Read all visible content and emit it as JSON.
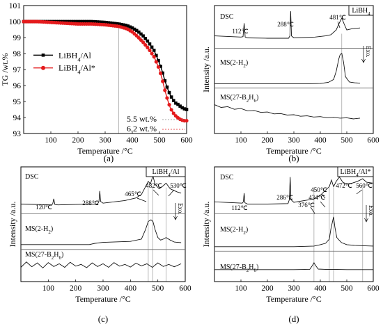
{
  "chart_data": [
    {
      "id": "a",
      "type": "line",
      "panel_label": "(a)",
      "xlabel": "Temperature /°C",
      "ylabel": "TG /wt.%",
      "xlim": [
        0,
        600
      ],
      "ylim": [
        93,
        101
      ],
      "xticks": [
        100,
        200,
        300,
        400,
        500,
        600
      ],
      "yticks": [
        93,
        94,
        95,
        96,
        97,
        98,
        99,
        100,
        101
      ],
      "legend_position": "left-middle",
      "series": [
        {
          "name": "LiBH4/Al",
          "color": "#000000",
          "marker": "square",
          "x": [
            0,
            50,
            100,
            150,
            200,
            250,
            300,
            350,
            380,
            400,
            420,
            440,
            460,
            480,
            500,
            510,
            520,
            530,
            540,
            550,
            560,
            570,
            580,
            590,
            600
          ],
          "y": [
            100.0,
            100.0,
            100.0,
            100.0,
            100.0,
            100.0,
            99.95,
            99.85,
            99.75,
            99.6,
            99.4,
            99.1,
            98.7,
            98.2,
            97.4,
            96.9,
            96.3,
            95.8,
            95.4,
            95.1,
            94.9,
            94.8,
            94.65,
            94.55,
            94.5
          ]
        },
        {
          "name": "LiBH4/Al*",
          "color": "#e41a1c",
          "marker": "circle",
          "x": [
            0,
            50,
            100,
            150,
            200,
            250,
            300,
            350,
            380,
            400,
            420,
            440,
            460,
            480,
            500,
            510,
            520,
            530,
            540,
            550,
            560,
            570,
            580,
            590,
            600
          ],
          "y": [
            100.0,
            100.0,
            99.95,
            99.9,
            99.85,
            99.85,
            99.8,
            99.7,
            99.55,
            99.35,
            99.05,
            98.7,
            98.3,
            97.8,
            97.0,
            96.4,
            95.7,
            95.1,
            94.6,
            94.3,
            94.1,
            93.95,
            93.85,
            93.8,
            93.8
          ]
        }
      ],
      "legend": [
        "LiBH",
        "4",
        "/Al",
        "LiBH",
        "4",
        "/Al*"
      ],
      "annotations": [
        {
          "text": "5.5 wt.%",
          "color": "#000000"
        },
        {
          "text": "6.2 wt.%",
          "color": "#e41a1c"
        }
      ],
      "guide_x": 350
    },
    {
      "id": "b",
      "type": "line",
      "panel_label": "(b)",
      "title": "LiBH4",
      "title_parts": [
        "LiBH",
        "4"
      ],
      "xlabel": "Temperature /°C",
      "ylabel": "Intensity /a.u.",
      "xlim": [
        0,
        600
      ],
      "xticks": [
        100,
        200,
        300,
        400,
        500,
        600
      ],
      "exo_label": "Exo.",
      "guide_x": [
        481
      ],
      "traces": [
        {
          "label": "DSC",
          "peaks_text": [
            "112℃",
            "288℃",
            "481℃"
          ],
          "x": [
            0,
            100,
            108,
            112,
            116,
            125,
            200,
            280,
            285,
            288,
            291,
            300,
            380,
            420,
            440,
            460,
            470,
            481,
            490,
            500,
            520,
            550
          ],
          "y": [
            0.3,
            0.27,
            0.28,
            0.62,
            0.27,
            0.25,
            0.24,
            0.24,
            0.3,
            0.92,
            0.3,
            0.25,
            0.27,
            0.3,
            0.33,
            0.45,
            0.6,
            0.75,
            0.6,
            0.45,
            0.48,
            0.5
          ]
        },
        {
          "label": "MS(2-H2)",
          "label_parts": [
            "MS(2-H",
            "2",
            ")"
          ],
          "x": [
            0,
            250,
            350,
            400,
            430,
            450,
            460,
            470,
            475,
            481,
            488,
            495,
            510,
            530,
            550
          ],
          "y": [
            0.1,
            0.1,
            0.1,
            0.11,
            0.14,
            0.22,
            0.45,
            0.8,
            0.92,
            0.95,
            0.7,
            0.3,
            0.15,
            0.13,
            0.12
          ]
        },
        {
          "label": "MS(27-B2H6)",
          "label_parts": [
            "MS(27-B",
            "2",
            "H",
            "6",
            ")"
          ],
          "x": [
            0,
            25,
            50,
            75,
            100,
            125,
            150,
            175,
            200,
            225,
            250,
            275,
            300,
            325,
            350,
            375,
            400,
            425,
            450,
            475,
            500,
            525,
            550
          ],
          "y": [
            0.65,
            0.58,
            0.6,
            0.53,
            0.55,
            0.49,
            0.5,
            0.45,
            0.46,
            0.41,
            0.42,
            0.38,
            0.39,
            0.35,
            0.36,
            0.33,
            0.34,
            0.31,
            0.32,
            0.3,
            0.31,
            0.28,
            0.3
          ]
        }
      ]
    },
    {
      "id": "c",
      "type": "line",
      "panel_label": "(c)",
      "title": "LiBH4/Al",
      "title_parts": [
        "LiBH",
        "4",
        "/Al"
      ],
      "xlabel": "Temperature /°C",
      "ylabel": "Intensity /a.u.",
      "xlim": [
        0,
        600
      ],
      "xticks": [
        100,
        200,
        300,
        400,
        500,
        600
      ],
      "exo_label": "Exo.",
      "guide_x": [
        465,
        482,
        530
      ],
      "traces": [
        {
          "label": "DSC",
          "peaks_text": [
            "120℃",
            "288℃",
            "465℃",
            "482℃",
            "530℃"
          ],
          "x": [
            0,
            110,
            116,
            120,
            124,
            135,
            200,
            280,
            285,
            288,
            291,
            300,
            380,
            420,
            440,
            455,
            465,
            473,
            482,
            490,
            505,
            520,
            530,
            545,
            570,
            585
          ],
          "y": [
            0.2,
            0.18,
            0.2,
            0.32,
            0.19,
            0.18,
            0.19,
            0.2,
            0.26,
            0.5,
            0.26,
            0.22,
            0.28,
            0.34,
            0.42,
            0.6,
            0.72,
            0.66,
            0.85,
            0.65,
            0.55,
            0.62,
            0.68,
            0.55,
            0.48,
            0.45
          ]
        },
        {
          "label": "MS(2-H2)",
          "label_parts": [
            "MS(2-H",
            "2",
            ")"
          ],
          "x": [
            0,
            250,
            270,
            300,
            400,
            440,
            455,
            465,
            475,
            482,
            490,
            500,
            510,
            520,
            530,
            545,
            560,
            585
          ],
          "y": [
            0.08,
            0.08,
            0.12,
            0.15,
            0.18,
            0.25,
            0.55,
            0.8,
            0.85,
            0.8,
            0.55,
            0.3,
            0.22,
            0.25,
            0.3,
            0.22,
            0.16,
            0.14
          ]
        },
        {
          "label": "MS(27-B2H6)",
          "label_parts": [
            "MS(27-B",
            "2",
            "H",
            "6",
            ")"
          ],
          "x": [
            0,
            20,
            40,
            60,
            80,
            100,
            120,
            140,
            160,
            180,
            200,
            220,
            240,
            260,
            280,
            300,
            320,
            340,
            360,
            380,
            400,
            420,
            440,
            460,
            480,
            500,
            520,
            540,
            560,
            585
          ],
          "y": [
            0.4,
            0.58,
            0.42,
            0.55,
            0.38,
            0.56,
            0.43,
            0.52,
            0.4,
            0.57,
            0.44,
            0.5,
            0.39,
            0.55,
            0.43,
            0.52,
            0.4,
            0.56,
            0.44,
            0.5,
            0.41,
            0.54,
            0.45,
            0.52,
            0.4,
            0.55,
            0.43,
            0.5,
            0.42,
            0.52
          ]
        }
      ]
    },
    {
      "id": "d",
      "type": "line",
      "panel_label": "(d)",
      "title": "LiBH4/Al*",
      "title_parts": [
        "LiBH",
        "4",
        "/Al*"
      ],
      "xlabel": "Temperature /°C",
      "ylabel": "Intensity /a.u.",
      "xlim": [
        0,
        600
      ],
      "xticks": [
        100,
        200,
        300,
        400,
        500,
        600
      ],
      "exo_label": "Exo.",
      "guide_x": [
        376,
        434,
        450,
        560
      ],
      "traces": [
        {
          "label": "DSC",
          "peaks_text": [
            "112℃",
            "286℃",
            "376℃",
            "434℃",
            "450℃",
            "472℃",
            "560℃"
          ],
          "x": [
            0,
            105,
            109,
            112,
            115,
            125,
            200,
            278,
            283,
            286,
            289,
            300,
            360,
            376,
            400,
            420,
            434,
            442,
            450,
            460,
            472,
            485,
            500,
            520,
            540,
            560,
            575,
            600
          ],
          "y": [
            0.25,
            0.22,
            0.25,
            0.45,
            0.23,
            0.2,
            0.2,
            0.21,
            0.3,
            0.82,
            0.3,
            0.24,
            0.3,
            0.32,
            0.4,
            0.52,
            0.6,
            0.75,
            0.6,
            0.72,
            0.82,
            0.7,
            0.66,
            0.68,
            0.72,
            0.78,
            0.7,
            0.68
          ]
        },
        {
          "label": "MS(2-H2)",
          "label_parts": [
            "MS(2-H",
            "2",
            ")"
          ],
          "x": [
            0,
            300,
            376,
            400,
            420,
            434,
            440,
            450,
            455,
            462,
            470,
            480,
            500,
            530,
            560,
            600
          ],
          "y": [
            0.08,
            0.08,
            0.1,
            0.14,
            0.18,
            0.3,
            0.6,
            0.95,
            0.65,
            0.35,
            0.28,
            0.2,
            0.14,
            0.12,
            0.11,
            0.1
          ]
        },
        {
          "label": "MS(27-B2H6)",
          "label_parts": [
            "MS(27-B",
            "2",
            "H",
            "6",
            ")"
          ],
          "x": [
            0,
            100,
            200,
            300,
            360,
            370,
            376,
            382,
            392,
            420,
            450,
            500,
            550,
            600
          ],
          "y": [
            0.35,
            0.35,
            0.35,
            0.35,
            0.36,
            0.5,
            0.6,
            0.5,
            0.37,
            0.36,
            0.36,
            0.35,
            0.35,
            0.35
          ]
        }
      ]
    }
  ]
}
